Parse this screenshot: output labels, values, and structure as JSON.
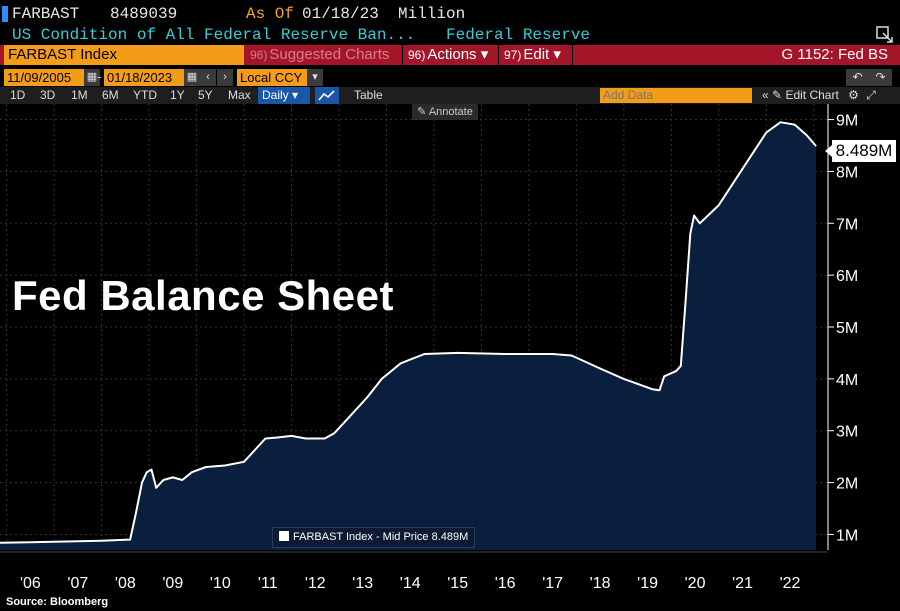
{
  "header": {
    "ticker": "FARBAST",
    "last_value": "8489039",
    "as_of_label": "As Of",
    "as_of_date": "01/18/23",
    "units": "Million",
    "description": "US Condition of All Federal Reserve Ban...",
    "source": "Federal Reserve"
  },
  "command_bar": {
    "security": "FARBAST Index",
    "suggested_num": "96)",
    "suggested_label": "Suggested Charts",
    "actions_num": "96)",
    "actions_label": "Actions",
    "edit_num": "97)",
    "edit_label": "Edit",
    "function_label": "G 1152: Fed BS"
  },
  "range_bar": {
    "start_date": "11/09/2005",
    "end_date": "01/18/2023",
    "currency": "Local CCY"
  },
  "period_bar": {
    "periods": [
      "1D",
      "3D",
      "1M",
      "6M",
      "YTD",
      "1Y",
      "5Y",
      "Max"
    ],
    "frequency": "Daily",
    "table_label": "Table",
    "add_data_placeholder": "Add Data",
    "edit_chart_label": "Edit Chart",
    "annotate_label": "Annotate"
  },
  "colors": {
    "line": "#ffffff",
    "fill": "#0a1f3d",
    "background": "#000000",
    "grid": "#333333",
    "orange": "#f39c1a",
    "red_bar": "#a3162a"
  },
  "chart_data": {
    "type": "area",
    "title": "Fed Balance Sheet",
    "series": [
      {
        "name": "FARBAST Index - Mid Price",
        "last_label": "8.489M",
        "points": [
          [
            2005.86,
            0.84
          ],
          [
            2006.5,
            0.85
          ],
          [
            2007.0,
            0.86
          ],
          [
            2007.5,
            0.87
          ],
          [
            2008.0,
            0.88
          ],
          [
            2008.6,
            0.9
          ],
          [
            2008.72,
            1.4
          ],
          [
            2008.85,
            2.0
          ],
          [
            2008.95,
            2.2
          ],
          [
            2009.05,
            2.25
          ],
          [
            2009.15,
            1.9
          ],
          [
            2009.3,
            2.05
          ],
          [
            2009.5,
            2.1
          ],
          [
            2009.7,
            2.05
          ],
          [
            2009.9,
            2.2
          ],
          [
            2010.2,
            2.3
          ],
          [
            2010.6,
            2.33
          ],
          [
            2011.0,
            2.4
          ],
          [
            2011.2,
            2.6
          ],
          [
            2011.45,
            2.85
          ],
          [
            2011.7,
            2.87
          ],
          [
            2012.0,
            2.9
          ],
          [
            2012.3,
            2.85
          ],
          [
            2012.7,
            2.85
          ],
          [
            2012.9,
            2.95
          ],
          [
            2013.2,
            3.25
          ],
          [
            2013.6,
            3.65
          ],
          [
            2013.9,
            4.0
          ],
          [
            2014.3,
            4.3
          ],
          [
            2014.8,
            4.48
          ],
          [
            2015.5,
            4.5
          ],
          [
            2016.5,
            4.48
          ],
          [
            2017.5,
            4.48
          ],
          [
            2017.9,
            4.45
          ],
          [
            2018.5,
            4.2
          ],
          [
            2019.0,
            4.0
          ],
          [
            2019.6,
            3.8
          ],
          [
            2019.75,
            3.78
          ],
          [
            2019.85,
            4.05
          ],
          [
            2020.1,
            4.15
          ],
          [
            2020.2,
            4.25
          ],
          [
            2020.3,
            5.5
          ],
          [
            2020.4,
            6.8
          ],
          [
            2020.48,
            7.15
          ],
          [
            2020.6,
            7.0
          ],
          [
            2021.0,
            7.35
          ],
          [
            2021.5,
            8.05
          ],
          [
            2022.0,
            8.75
          ],
          [
            2022.3,
            8.95
          ],
          [
            2022.6,
            8.9
          ],
          [
            2022.85,
            8.7
          ],
          [
            2023.05,
            8.489
          ]
        ]
      }
    ],
    "x_ticks": [
      "'06",
      "'07",
      "'08",
      "'09",
      "'10",
      "'11",
      "'12",
      "'13",
      "'14",
      "'15",
      "'16",
      "'17",
      "'18",
      "'19",
      "'20",
      "'21",
      "'22"
    ],
    "y_ticks": [
      "1M",
      "2M",
      "3M",
      "4M",
      "5M",
      "6M",
      "7M",
      "8M",
      "9M"
    ],
    "ylim": [
      0.7,
      9.3
    ],
    "xlim": [
      2005.86,
      2023.3
    ],
    "grid": true,
    "legend_position": "bottom-center"
  },
  "footer": {
    "source_note": "Source: Bloomberg"
  }
}
